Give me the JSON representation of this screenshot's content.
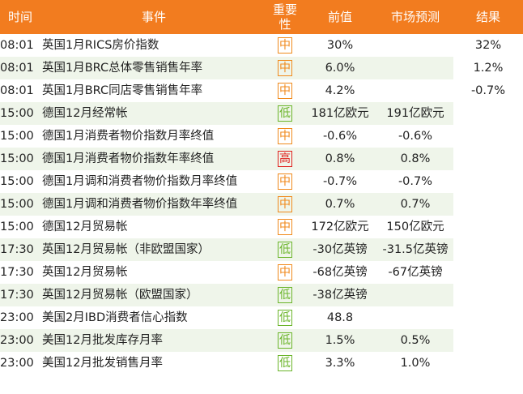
{
  "table": {
    "header": [
      "时间",
      "事件",
      "重要性",
      "前值",
      "市场预测",
      "结果"
    ],
    "badge_colors": {
      "中": "#f08a1c",
      "低": "#6bb52a",
      "高": "#e0201c"
    },
    "rows": [
      [
        "08:01",
        "英国1月RICS房价指数",
        "中",
        "30%",
        "",
        "32%"
      ],
      [
        "08:01",
        "英国1月BRC总体零售销售年率",
        "中",
        "6.0%",
        "",
        "1.2%"
      ],
      [
        "08:01",
        "英国1月BRC同店零售销售年率",
        "中",
        "4.2%",
        "",
        "-0.7%"
      ],
      [
        "15:00",
        "德国12月经常帐",
        "低",
        "181亿欧元",
        "191亿欧元",
        ""
      ],
      [
        "15:00",
        "德国1月消费者物价指数月率终值",
        "中",
        "-0.6%",
        "-0.6%",
        ""
      ],
      [
        "15:00",
        "德国1月消费者物价指数年率终值",
        "高",
        "0.8%",
        "0.8%",
        ""
      ],
      [
        "15:00",
        "德国1月调和消费者物价指数月率终值",
        "中",
        "-0.7%",
        "-0.7%",
        ""
      ],
      [
        "15:00",
        "德国1月调和消费者物价指数年率终值",
        "中",
        "0.7%",
        "0.7%",
        ""
      ],
      [
        "15:00",
        "德国12月贸易帐",
        "中",
        "172亿欧元",
        "150亿欧元",
        ""
      ],
      [
        "17:30",
        "英国12月贸易帐（非欧盟国家）",
        "低",
        "-30亿英镑",
        "-31.5亿英镑",
        ""
      ],
      [
        "17:30",
        "英国12月贸易帐",
        "中",
        "-68亿英镑",
        "-67亿英镑",
        ""
      ],
      [
        "17:30",
        "英国12月贸易帐（欧盟国家）",
        "低",
        "-38亿英镑",
        "",
        ""
      ],
      [
        "23:00",
        "美国2月IBD消费者信心指数",
        "低",
        "48.8",
        "",
        ""
      ],
      [
        "23:00",
        "美国12月批发库存月率",
        "低",
        "1.5%",
        "0.5%",
        ""
      ],
      [
        "23:00",
        "美国12月批发销售月率",
        "低",
        "3.3%",
        "1.0%",
        ""
      ]
    ]
  }
}
